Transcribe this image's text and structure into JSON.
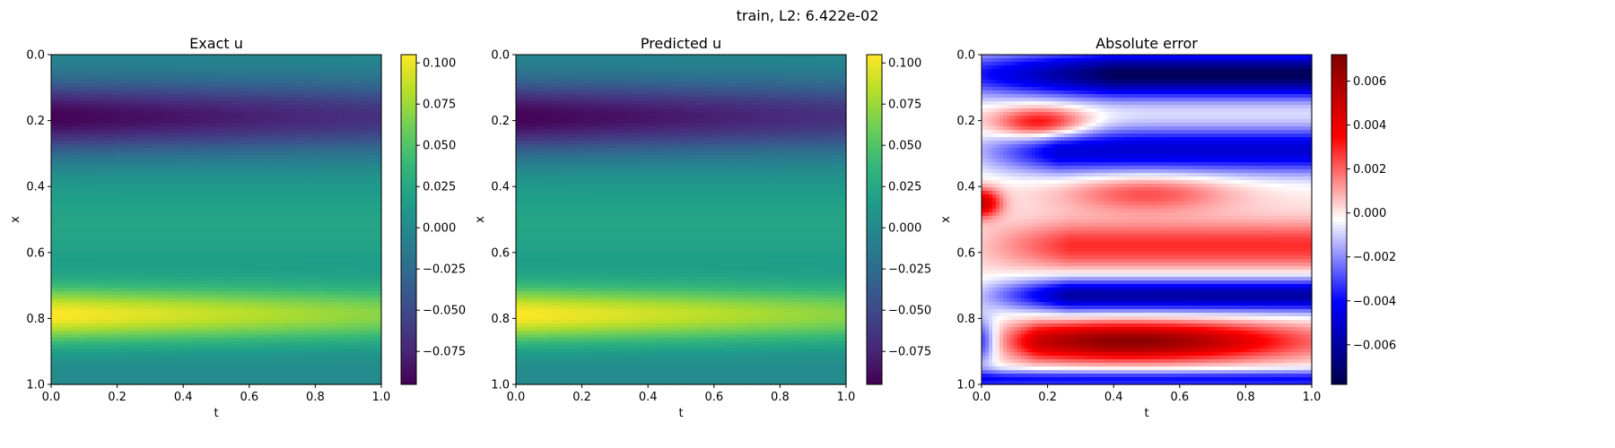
{
  "figure": {
    "suptitle": "train, L2: 6.422e-02"
  },
  "chart_data": [
    {
      "type": "heatmap",
      "title": "Exact u",
      "xlabel": "t",
      "ylabel": "x",
      "xlim": [
        0.0,
        1.0
      ],
      "ylim": [
        0.0,
        1.0
      ],
      "y_inverted": true,
      "x_ticks": [
        "0.0",
        "0.2",
        "0.4",
        "0.6",
        "0.8",
        "1.0"
      ],
      "y_ticks": [
        "0.0",
        "0.2",
        "0.4",
        "0.6",
        "0.8",
        "1.0"
      ],
      "colormap": "viridis",
      "colorbar": {
        "range": [
          -0.095,
          0.105
        ],
        "ticks": [
          "0.100",
          "0.075",
          "0.050",
          "0.025",
          "0.000",
          "−0.025",
          "−0.050",
          "−0.075"
        ],
        "tick_values": [
          0.1,
          0.075,
          0.05,
          0.025,
          0.0,
          -0.025,
          -0.05,
          -0.075
        ]
      },
      "field_description": "u(t,x) negative band near x=0.2 (about -0.09), positive band near x=0.8 (about 0.10), both decaying slowly with t",
      "approx_values": {
        "x": [
          0.0,
          0.1,
          0.2,
          0.3,
          0.4,
          0.5,
          0.6,
          0.7,
          0.8,
          0.9,
          1.0
        ],
        "t": [
          0.0,
          0.5,
          1.0
        ],
        "u": [
          [
            0.0,
            0.0,
            0.0
          ],
          [
            -0.055,
            -0.05,
            -0.045
          ],
          [
            -0.09,
            -0.075,
            -0.065
          ],
          [
            -0.055,
            -0.045,
            -0.04
          ],
          [
            0.01,
            0.01,
            0.01
          ],
          [
            0.02,
            0.02,
            0.02
          ],
          [
            0.02,
            0.02,
            0.02
          ],
          [
            0.06,
            0.055,
            0.05
          ],
          [
            0.103,
            0.08,
            0.065
          ],
          [
            0.06,
            0.05,
            0.045
          ],
          [
            0.0,
            0.0,
            0.0
          ]
        ]
      }
    },
    {
      "type": "heatmap",
      "title": "Predicted u",
      "xlabel": "t",
      "ylabel": "x",
      "xlim": [
        0.0,
        1.0
      ],
      "ylim": [
        0.0,
        1.0
      ],
      "y_inverted": true,
      "x_ticks": [
        "0.0",
        "0.2",
        "0.4",
        "0.6",
        "0.8",
        "1.0"
      ],
      "y_ticks": [
        "0.0",
        "0.2",
        "0.4",
        "0.6",
        "0.8",
        "1.0"
      ],
      "colormap": "viridis",
      "colorbar": {
        "range": [
          -0.095,
          0.105
        ],
        "ticks": [
          "0.100",
          "0.075",
          "0.050",
          "0.025",
          "0.000",
          "−0.025",
          "−0.050",
          "−0.075"
        ],
        "tick_values": [
          0.1,
          0.075,
          0.05,
          0.025,
          0.0,
          -0.025,
          -0.05,
          -0.075
        ]
      },
      "field_description": "nearly identical to Exact u",
      "approx_values": {
        "x": [
          0.0,
          0.1,
          0.2,
          0.3,
          0.4,
          0.5,
          0.6,
          0.7,
          0.8,
          0.9,
          1.0
        ],
        "t": [
          0.0,
          0.5,
          1.0
        ],
        "u": [
          [
            0.0,
            0.0,
            0.0
          ],
          [
            -0.055,
            -0.05,
            -0.045
          ],
          [
            -0.09,
            -0.075,
            -0.065
          ],
          [
            -0.055,
            -0.045,
            -0.04
          ],
          [
            0.01,
            0.01,
            0.01
          ],
          [
            0.02,
            0.02,
            0.02
          ],
          [
            0.02,
            0.02,
            0.02
          ],
          [
            0.06,
            0.055,
            0.05
          ],
          [
            0.103,
            0.08,
            0.065
          ],
          [
            0.06,
            0.05,
            0.045
          ],
          [
            0.0,
            0.0,
            0.0
          ]
        ]
      }
    },
    {
      "type": "heatmap",
      "title": "Absolute error",
      "xlabel": "t",
      "ylabel": "x",
      "xlim": [
        0.0,
        1.0
      ],
      "ylim": [
        0.0,
        1.0
      ],
      "y_inverted": true,
      "x_ticks": [
        "0.0",
        "0.2",
        "0.4",
        "0.6",
        "0.8",
        "1.0"
      ],
      "y_ticks": [
        "0.0",
        "0.2",
        "0.4",
        "0.6",
        "0.8",
        "1.0"
      ],
      "colormap": "seismic",
      "colorbar": {
        "range": [
          -0.0078,
          0.0072
        ],
        "ticks": [
          "0.006",
          "0.004",
          "0.002",
          "0.000",
          "−0.002",
          "−0.004",
          "−0.006"
        ],
        "tick_values": [
          0.006,
          0.004,
          0.002,
          0.0,
          -0.002,
          -0.004,
          -0.006
        ]
      },
      "field_description": "alternating horizontal error bands: strong negative (blue) near x=0.08 and 0.28, 0.75; positive (red) lobes near x=0.22 (t~0.2), x=0.42 (t~0.5), x=0.58, strong positive near x=0.87 (t 0.15-1.0); positive spot near t=0, x=0.45",
      "approx_values": {
        "x": [
          0.05,
          0.22,
          0.3,
          0.42,
          0.58,
          0.72,
          0.87,
          0.98
        ],
        "t_center": [
          0.6,
          0.2,
          0.6,
          0.5,
          0.5,
          0.5,
          0.4,
          0.5
        ],
        "err_peak": [
          -0.0075,
          0.004,
          -0.005,
          0.002,
          0.003,
          -0.006,
          0.0068,
          -0.004
        ]
      }
    }
  ],
  "colors": {
    "viridis": [
      "#440154",
      "#482878",
      "#3e4989",
      "#31688e",
      "#26828e",
      "#1f9e89",
      "#35b779",
      "#6ece58",
      "#b5de2b",
      "#fde725"
    ],
    "seismic": [
      "#00004c",
      "#0000ff",
      "#ffffff",
      "#ff0000",
      "#7f0000"
    ]
  }
}
